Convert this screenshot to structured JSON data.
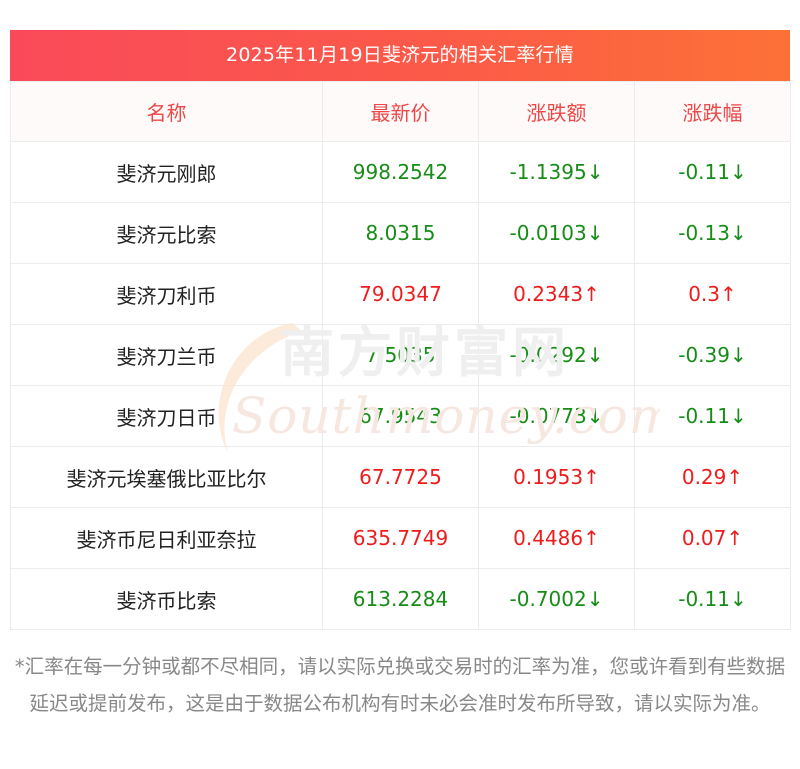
{
  "title": "2025年11月19日斐济元的相关汇率行情",
  "columns": [
    "名称",
    "最新价",
    "涨跌额",
    "涨跌幅"
  ],
  "rows": [
    {
      "name": "斐济元刚郎",
      "price": "998.2542",
      "change": "-1.1395↓",
      "pct": "-0.11↓",
      "dir": "down"
    },
    {
      "name": "斐济元比索",
      "price": "8.0315",
      "change": "-0.0103↓",
      "pct": "-0.13↓",
      "dir": "down"
    },
    {
      "name": "斐济刀利币",
      "price": "79.0347",
      "change": "0.2343↑",
      "pct": "0.3↑",
      "dir": "up"
    },
    {
      "name": "斐济刀兰币",
      "price": "7.5035",
      "change": "-0.0292↓",
      "pct": "-0.39↓",
      "dir": "down"
    },
    {
      "name": "斐济刀日币",
      "price": "67.9543",
      "change": "-0.0773↓",
      "pct": "-0.11↓",
      "dir": "down"
    },
    {
      "name": "斐济元埃塞俄比亚比尔",
      "price": "67.7725",
      "change": "0.1953↑",
      "pct": "0.29↑",
      "dir": "up"
    },
    {
      "name": "斐济币尼日利亚奈拉",
      "price": "635.7749",
      "change": "0.4486↑",
      "pct": "0.07↑",
      "dir": "up"
    },
    {
      "name": "斐济币比索",
      "price": "613.2284",
      "change": "-0.7002↓",
      "pct": "-0.11↓",
      "dir": "down"
    }
  ],
  "watermark": {
    "cn": "南方财富网",
    "en": "Southmoney.com"
  },
  "footnote": "*汇率在每一分钟或都不尽相同，请以实际兑换或交易时的汇率为准，您或许看到有些数据延迟或提前发布，这是由于数据公布机构有时未必会准时发布所导致，请以实际为准。",
  "colors": {
    "up": "#ee1c1c",
    "down": "#178c17",
    "header_text": "#ec4848",
    "title_gradient_start": "#fa4a5a",
    "title_gradient_end": "#fd7137"
  }
}
